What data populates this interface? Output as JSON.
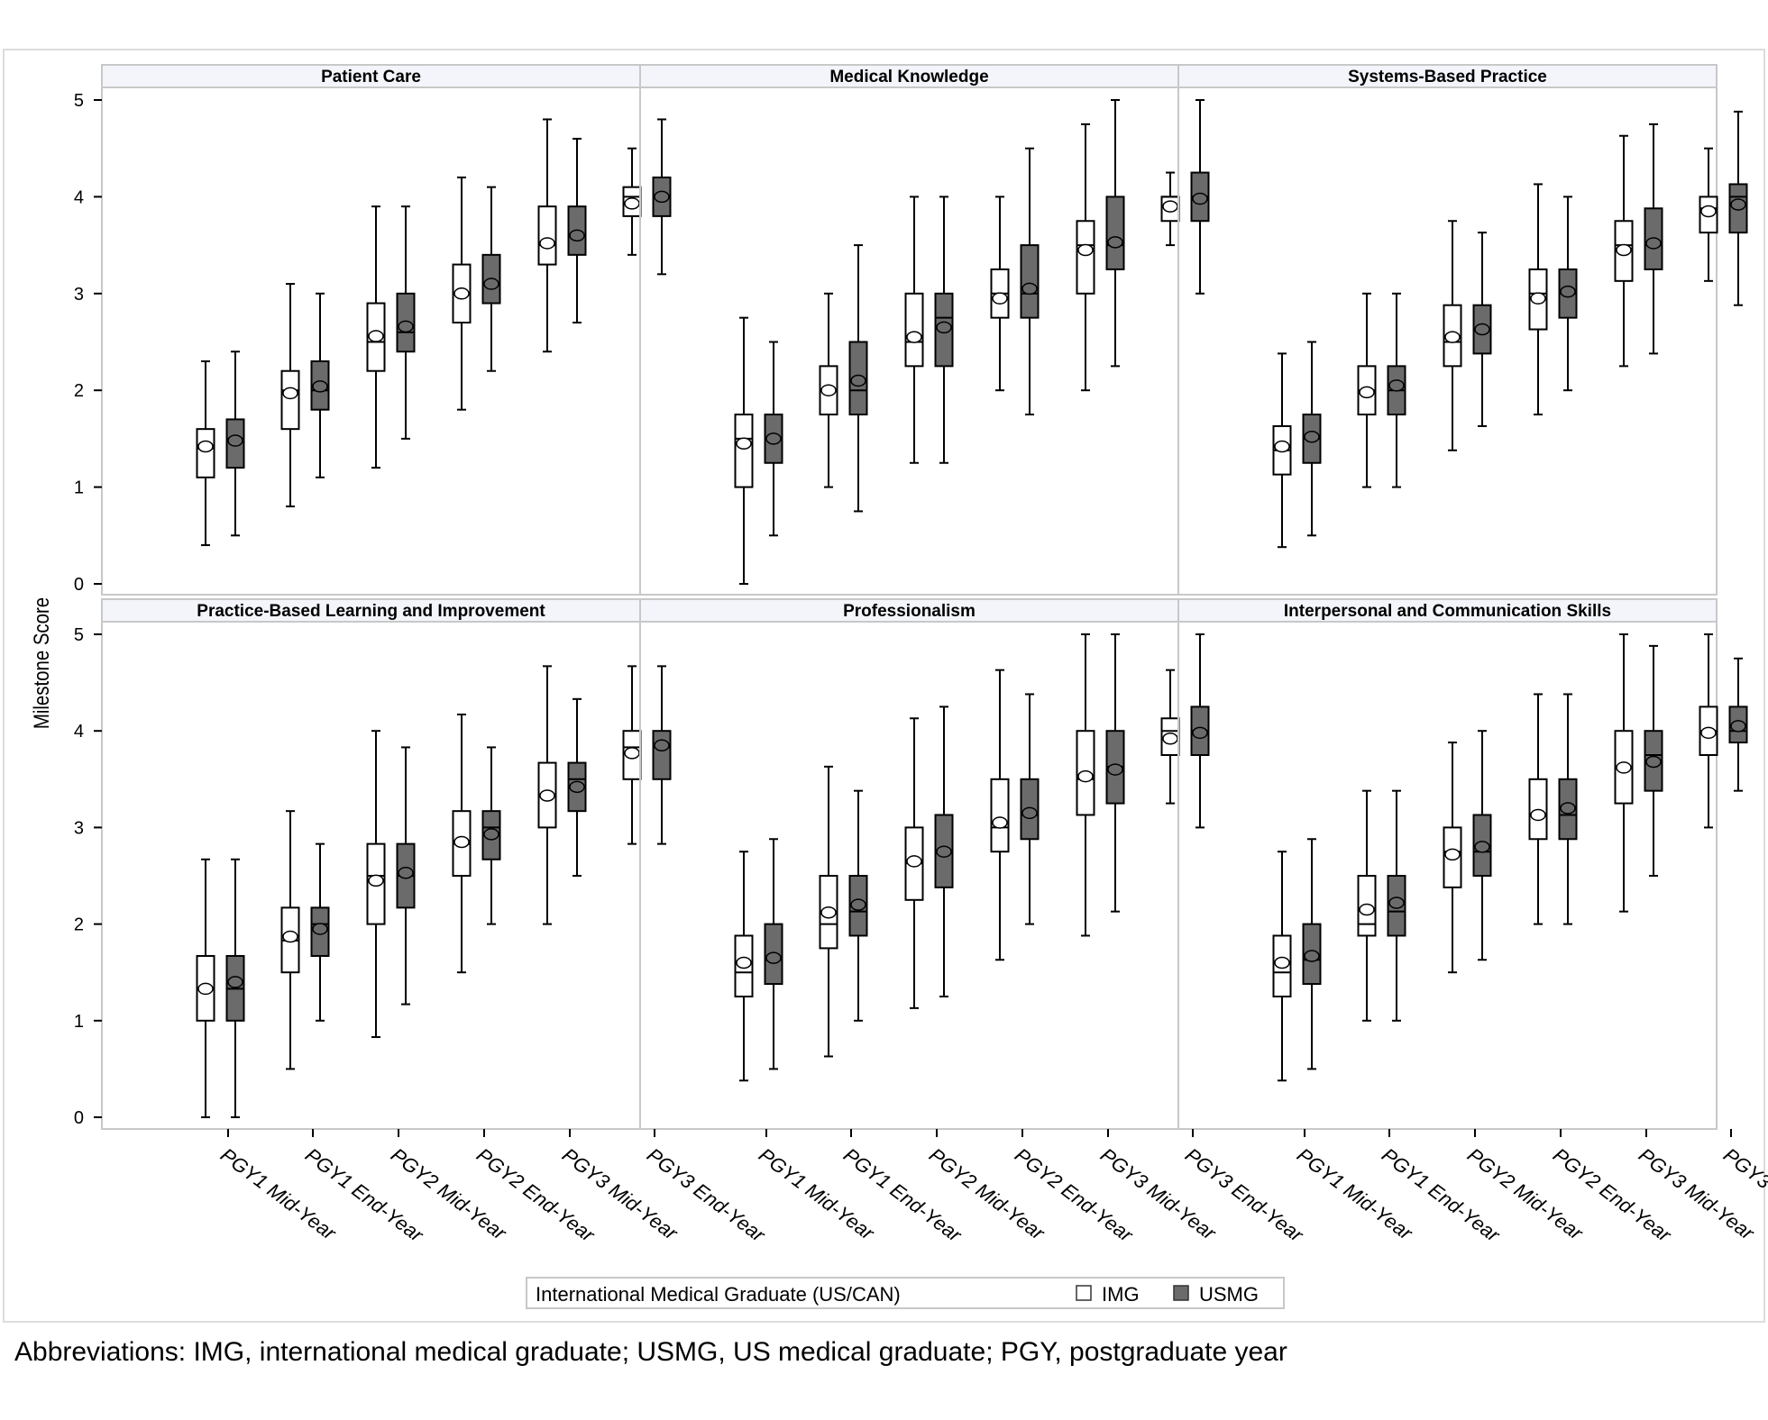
{
  "chart_data": {
    "type": "box",
    "ylabel": "Milestone Score",
    "ylim": [
      0,
      5
    ],
    "yticks": [
      0,
      1,
      2,
      3,
      4,
      5
    ],
    "categories": [
      "PGY1 Mid-Year",
      "PGY1 End-Year",
      "PGY2 Mid-Year",
      "PGY2 End-Year",
      "PGY3 Mid-Year",
      "PGY3 End-Year"
    ],
    "legend": {
      "title": "International Medical Graduate (US/CAN)",
      "position": "bottom-center",
      "items": [
        {
          "label": "IMG",
          "color": "#ffffff"
        },
        {
          "label": "USMG",
          "color": "#6b6b6b"
        }
      ]
    },
    "grid": false,
    "panels": [
      {
        "title": "Patient Care",
        "series": [
          {
            "name": "IMG",
            "boxes": [
              {
                "min": 0.4,
                "q1": 1.1,
                "median": 1.4,
                "q3": 1.6,
                "max": 2.3,
                "mean": 1.42
              },
              {
                "min": 0.8,
                "q1": 1.6,
                "median": 2.0,
                "q3": 2.2,
                "max": 3.1,
                "mean": 1.97
              },
              {
                "min": 1.2,
                "q1": 2.2,
                "median": 2.5,
                "q3": 2.9,
                "max": 3.9,
                "mean": 2.56
              },
              {
                "min": 1.8,
                "q1": 2.7,
                "median": 3.0,
                "q3": 3.3,
                "max": 4.2,
                "mean": 3.0
              },
              {
                "min": 2.4,
                "q1": 3.3,
                "median": 3.5,
                "q3": 3.9,
                "max": 4.8,
                "mean": 3.52
              },
              {
                "min": 3.4,
                "q1": 3.8,
                "median": 4.0,
                "q3": 4.1,
                "max": 4.5,
                "mean": 3.93
              }
            ]
          },
          {
            "name": "USMG",
            "boxes": [
              {
                "min": 0.5,
                "q1": 1.2,
                "median": 1.5,
                "q3": 1.7,
                "max": 2.4,
                "mean": 1.48
              },
              {
                "min": 1.1,
                "q1": 1.8,
                "median": 2.0,
                "q3": 2.3,
                "max": 3.0,
                "mean": 2.04
              },
              {
                "min": 1.5,
                "q1": 2.4,
                "median": 2.6,
                "q3": 3.0,
                "max": 3.9,
                "mean": 2.66
              },
              {
                "min": 2.2,
                "q1": 2.9,
                "median": 3.1,
                "q3": 3.4,
                "max": 4.1,
                "mean": 3.1
              },
              {
                "min": 2.7,
                "q1": 3.4,
                "median": 3.6,
                "q3": 3.9,
                "max": 4.6,
                "mean": 3.6
              },
              {
                "min": 3.2,
                "q1": 3.8,
                "median": 4.0,
                "q3": 4.2,
                "max": 4.8,
                "mean": 4.0
              }
            ]
          }
        ]
      },
      {
        "title": "Medical Knowledge",
        "series": [
          {
            "name": "IMG",
            "boxes": [
              {
                "min": 0.0,
                "q1": 1.0,
                "median": 1.5,
                "q3": 1.75,
                "max": 2.75,
                "mean": 1.45
              },
              {
                "min": 1.0,
                "q1": 1.75,
                "median": 2.0,
                "q3": 2.25,
                "max": 3.0,
                "mean": 2.0
              },
              {
                "min": 1.25,
                "q1": 2.25,
                "median": 2.5,
                "q3": 3.0,
                "max": 4.0,
                "mean": 2.55
              },
              {
                "min": 2.0,
                "q1": 2.75,
                "median": 3.0,
                "q3": 3.25,
                "max": 4.0,
                "mean": 2.95
              },
              {
                "min": 2.0,
                "q1": 3.0,
                "median": 3.5,
                "q3": 3.75,
                "max": 4.75,
                "mean": 3.45
              },
              {
                "min": 3.5,
                "q1": 3.75,
                "median": 4.0,
                "q3": 4.0,
                "max": 4.25,
                "mean": 3.9
              }
            ]
          },
          {
            "name": "USMG",
            "boxes": [
              {
                "min": 0.5,
                "q1": 1.25,
                "median": 1.5,
                "q3": 1.75,
                "max": 2.5,
                "mean": 1.5
              },
              {
                "min": 0.75,
                "q1": 1.75,
                "median": 2.0,
                "q3": 2.5,
                "max": 3.5,
                "mean": 2.1
              },
              {
                "min": 1.25,
                "q1": 2.25,
                "median": 2.75,
                "q3": 3.0,
                "max": 4.0,
                "mean": 2.65
              },
              {
                "min": 1.75,
                "q1": 2.75,
                "median": 3.0,
                "q3": 3.5,
                "max": 4.5,
                "mean": 3.05
              },
              {
                "min": 2.25,
                "q1": 3.25,
                "median": 3.5,
                "q3": 4.0,
                "max": 5.0,
                "mean": 3.53
              },
              {
                "min": 3.0,
                "q1": 3.75,
                "median": 4.0,
                "q3": 4.25,
                "max": 5.0,
                "mean": 3.98
              }
            ]
          }
        ]
      },
      {
        "title": "Systems-Based Practice",
        "series": [
          {
            "name": "IMG",
            "boxes": [
              {
                "min": 0.38,
                "q1": 1.13,
                "median": 1.38,
                "q3": 1.63,
                "max": 2.38,
                "mean": 1.42
              },
              {
                "min": 1.0,
                "q1": 1.75,
                "median": 2.0,
                "q3": 2.25,
                "max": 3.0,
                "mean": 1.98
              },
              {
                "min": 1.38,
                "q1": 2.25,
                "median": 2.5,
                "q3": 2.88,
                "max": 3.75,
                "mean": 2.55
              },
              {
                "min": 1.75,
                "q1": 2.63,
                "median": 3.0,
                "q3": 3.25,
                "max": 4.13,
                "mean": 2.95
              },
              {
                "min": 2.25,
                "q1": 3.13,
                "median": 3.5,
                "q3": 3.75,
                "max": 4.63,
                "mean": 3.45
              },
              {
                "min": 3.13,
                "q1": 3.63,
                "median": 3.88,
                "q3": 4.0,
                "max": 4.5,
                "mean": 3.85
              }
            ]
          },
          {
            "name": "USMG",
            "boxes": [
              {
                "min": 0.5,
                "q1": 1.25,
                "median": 1.5,
                "q3": 1.75,
                "max": 2.5,
                "mean": 1.52
              },
              {
                "min": 1.0,
                "q1": 1.75,
                "median": 2.0,
                "q3": 2.25,
                "max": 3.0,
                "mean": 2.05
              },
              {
                "min": 1.63,
                "q1": 2.38,
                "median": 2.63,
                "q3": 2.88,
                "max": 3.63,
                "mean": 2.63
              },
              {
                "min": 2.0,
                "q1": 2.75,
                "median": 3.0,
                "q3": 3.25,
                "max": 4.0,
                "mean": 3.02
              },
              {
                "min": 2.38,
                "q1": 3.25,
                "median": 3.5,
                "q3": 3.88,
                "max": 4.75,
                "mean": 3.52
              },
              {
                "min": 2.88,
                "q1": 3.63,
                "median": 4.0,
                "q3": 4.13,
                "max": 4.88,
                "mean": 3.92
              }
            ]
          }
        ]
      },
      {
        "title": "Practice-Based Learning and Improvement",
        "series": [
          {
            "name": "IMG",
            "boxes": [
              {
                "min": 0.0,
                "q1": 1.0,
                "median": 1.33,
                "q3": 1.67,
                "max": 2.67,
                "mean": 1.33
              },
              {
                "min": 0.5,
                "q1": 1.5,
                "median": 1.83,
                "q3": 2.17,
                "max": 3.17,
                "mean": 1.87
              },
              {
                "min": 0.83,
                "q1": 2.0,
                "median": 2.5,
                "q3": 2.83,
                "max": 4.0,
                "mean": 2.45
              },
              {
                "min": 1.5,
                "q1": 2.5,
                "median": 2.83,
                "q3": 3.17,
                "max": 4.17,
                "mean": 2.85
              },
              {
                "min": 2.0,
                "q1": 3.0,
                "median": 3.33,
                "q3": 3.67,
                "max": 4.67,
                "mean": 3.33
              },
              {
                "min": 2.83,
                "q1": 3.5,
                "median": 3.83,
                "q3": 4.0,
                "max": 4.67,
                "mean": 3.77
              }
            ]
          },
          {
            "name": "USMG",
            "boxes": [
              {
                "min": 0.0,
                "q1": 1.0,
                "median": 1.33,
                "q3": 1.67,
                "max": 2.67,
                "mean": 1.4
              },
              {
                "min": 1.0,
                "q1": 1.67,
                "median": 2.0,
                "q3": 2.17,
                "max": 2.83,
                "mean": 1.95
              },
              {
                "min": 1.17,
                "q1": 2.17,
                "median": 2.5,
                "q3": 2.83,
                "max": 3.83,
                "mean": 2.53
              },
              {
                "min": 2.0,
                "q1": 2.67,
                "median": 3.0,
                "q3": 3.17,
                "max": 3.83,
                "mean": 2.93
              },
              {
                "min": 2.5,
                "q1": 3.17,
                "median": 3.5,
                "q3": 3.67,
                "max": 4.33,
                "mean": 3.42
              },
              {
                "min": 2.83,
                "q1": 3.5,
                "median": 3.83,
                "q3": 4.0,
                "max": 4.67,
                "mean": 3.85
              }
            ]
          }
        ]
      },
      {
        "title": "Professionalism",
        "series": [
          {
            "name": "IMG",
            "boxes": [
              {
                "min": 0.38,
                "q1": 1.25,
                "median": 1.5,
                "q3": 1.88,
                "max": 2.75,
                "mean": 1.6
              },
              {
                "min": 0.63,
                "q1": 1.75,
                "median": 2.0,
                "q3": 2.5,
                "max": 3.63,
                "mean": 2.12
              },
              {
                "min": 1.13,
                "q1": 2.25,
                "median": 2.63,
                "q3": 3.0,
                "max": 4.13,
                "mean": 2.65
              },
              {
                "min": 1.63,
                "q1": 2.75,
                "median": 3.0,
                "q3": 3.5,
                "max": 4.63,
                "mean": 3.05
              },
              {
                "min": 1.88,
                "q1": 3.13,
                "median": 3.5,
                "q3": 4.0,
                "max": 5.0,
                "mean": 3.53
              },
              {
                "min": 3.25,
                "q1": 3.75,
                "median": 4.0,
                "q3": 4.13,
                "max": 4.63,
                "mean": 3.92
              }
            ]
          },
          {
            "name": "USMG",
            "boxes": [
              {
                "min": 0.5,
                "q1": 1.38,
                "median": 1.63,
                "q3": 2.0,
                "max": 2.88,
                "mean": 1.65
              },
              {
                "min": 1.0,
                "q1": 1.88,
                "median": 2.13,
                "q3": 2.5,
                "max": 3.38,
                "mean": 2.2
              },
              {
                "min": 1.25,
                "q1": 2.38,
                "median": 2.75,
                "q3": 3.13,
                "max": 4.25,
                "mean": 2.75
              },
              {
                "min": 2.0,
                "q1": 2.88,
                "median": 3.13,
                "q3": 3.5,
                "max": 4.38,
                "mean": 3.15
              },
              {
                "min": 2.13,
                "q1": 3.25,
                "median": 3.63,
                "q3": 4.0,
                "max": 5.0,
                "mean": 3.6
              },
              {
                "min": 3.0,
                "q1": 3.75,
                "median": 4.0,
                "q3": 4.25,
                "max": 5.0,
                "mean": 3.98
              }
            ]
          }
        ]
      },
      {
        "title": "Interpersonal and Communication Skills",
        "series": [
          {
            "name": "IMG",
            "boxes": [
              {
                "min": 0.38,
                "q1": 1.25,
                "median": 1.5,
                "q3": 1.88,
                "max": 2.75,
                "mean": 1.6
              },
              {
                "min": 1.0,
                "q1": 1.88,
                "median": 2.0,
                "q3": 2.5,
                "max": 3.38,
                "mean": 2.15
              },
              {
                "min": 1.5,
                "q1": 2.38,
                "median": 2.75,
                "q3": 3.0,
                "max": 3.88,
                "mean": 2.72
              },
              {
                "min": 2.0,
                "q1": 2.88,
                "median": 3.13,
                "q3": 3.5,
                "max": 4.38,
                "mean": 3.13
              },
              {
                "min": 2.13,
                "q1": 3.25,
                "median": 3.63,
                "q3": 4.0,
                "max": 5.0,
                "mean": 3.62
              },
              {
                "min": 3.0,
                "q1": 3.75,
                "median": 4.0,
                "q3": 4.25,
                "max": 5.0,
                "mean": 3.98
              }
            ]
          },
          {
            "name": "USMG",
            "boxes": [
              {
                "min": 0.5,
                "q1": 1.38,
                "median": 1.63,
                "q3": 2.0,
                "max": 2.88,
                "mean": 1.67
              },
              {
                "min": 1.0,
                "q1": 1.88,
                "median": 2.13,
                "q3": 2.5,
                "max": 3.38,
                "mean": 2.22
              },
              {
                "min": 1.63,
                "q1": 2.5,
                "median": 2.75,
                "q3": 3.13,
                "max": 4.0,
                "mean": 2.8
              },
              {
                "min": 2.0,
                "q1": 2.88,
                "median": 3.13,
                "q3": 3.5,
                "max": 4.38,
                "mean": 3.2
              },
              {
                "min": 2.5,
                "q1": 3.38,
                "median": 3.75,
                "q3": 4.0,
                "max": 4.88,
                "mean": 3.68
              },
              {
                "min": 3.38,
                "q1": 3.88,
                "median": 4.0,
                "q3": 4.25,
                "max": 4.75,
                "mean": 4.05
              }
            ]
          }
        ]
      }
    ]
  },
  "footnote": "Abbreviations: IMG, international medical graduate; USMG, US medical graduate; PGY, postgraduate year"
}
